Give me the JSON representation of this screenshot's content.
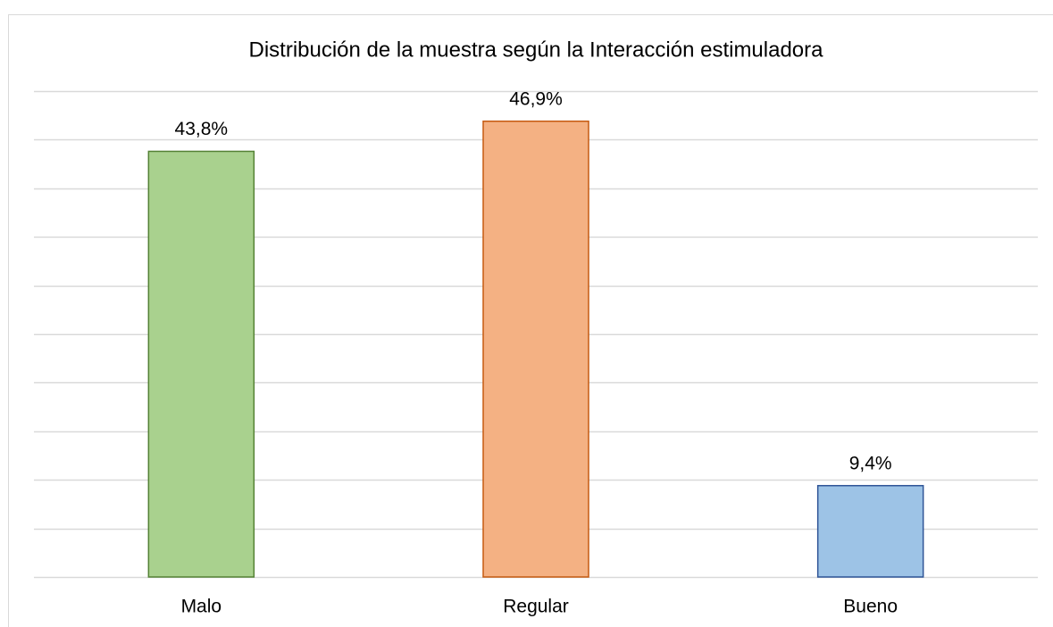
{
  "chart_data": {
    "type": "bar",
    "title": "Distribución de la muestra según la Interacción estimuladora",
    "categories": [
      "Malo",
      "Regular",
      "Bueno"
    ],
    "values": [
      43.8,
      46.9,
      9.4
    ],
    "value_labels": [
      "43,8%",
      "46,9%",
      "9,4%"
    ],
    "colors": [
      "#a9d18e",
      "#f4b183",
      "#9dc3e6"
    ],
    "edge_colors": [
      "#548235",
      "#c55a11",
      "#2f5597"
    ],
    "ylim": [
      0,
      50
    ],
    "yticks": [
      0,
      5,
      10,
      15,
      20,
      25,
      30,
      35,
      40,
      45,
      50
    ],
    "grid": true
  }
}
